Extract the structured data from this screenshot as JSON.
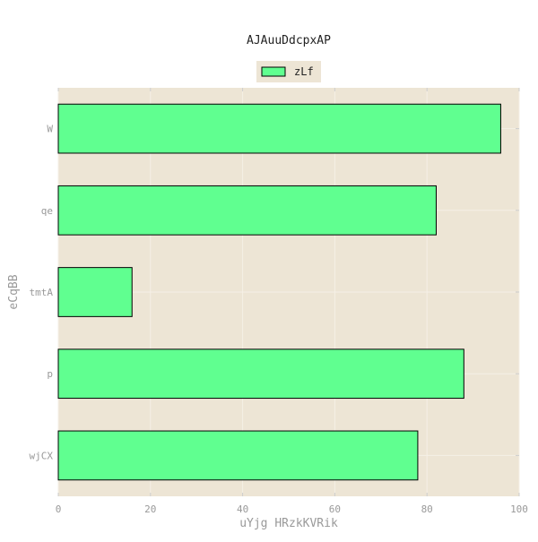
{
  "chart_data": {
    "type": "bar",
    "orientation": "horizontal",
    "title": "AJAuuDdcpxAP",
    "xlabel": "uYjg HRzkKVRik",
    "ylabel": "eCqBB",
    "categories": [
      "W",
      "qe",
      "tmtA",
      "p",
      "wjCX"
    ],
    "series": [
      {
        "name": "zLf",
        "values": [
          96,
          82,
          16,
          88,
          78
        ]
      }
    ],
    "xlim": [
      0,
      100
    ],
    "xticks": [
      0,
      20,
      40,
      60,
      80,
      100
    ],
    "grid": true,
    "legend_position": "top-center",
    "colors": {
      "bar_fill": "#60ff90",
      "bar_edge": "#000000",
      "plot_background": "#ede5d5",
      "grid": "#f5f0e6",
      "label_text": "#999999"
    }
  }
}
